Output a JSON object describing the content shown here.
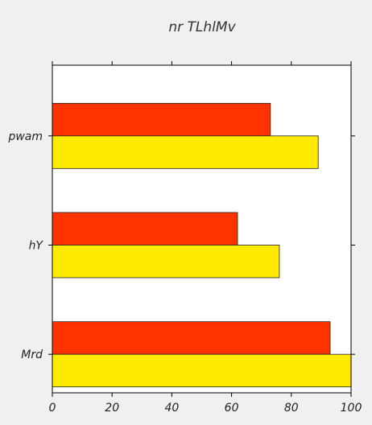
{
  "chart_data": {
    "type": "bar",
    "orientation": "horizontal",
    "title": "nr  TLhlMv",
    "xlabel": "",
    "ylabel": "",
    "xlim": [
      0,
      100
    ],
    "xticks": [
      "0",
      "20",
      "40",
      "60",
      "80",
      "100"
    ],
    "categories": [
      "pwam",
      "hY",
      "Mrd"
    ],
    "series": [
      {
        "color": "#ff3300",
        "values": [
          73,
          62,
          93
        ]
      },
      {
        "color": "#ffea00",
        "values": [
          89,
          76,
          100
        ]
      }
    ],
    "grid": false,
    "legend": "none"
  }
}
